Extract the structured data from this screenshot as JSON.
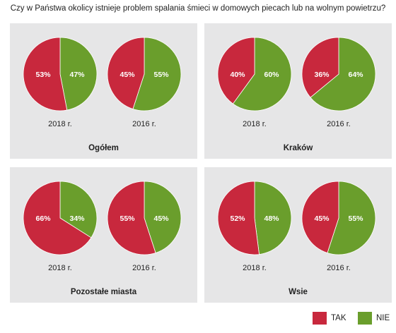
{
  "colors": {
    "tak": "#c8283d",
    "nie": "#6a9e2c"
  },
  "chart_data": {
    "type": "pie",
    "title": "Czy w Państwa okolicy istnieje problem spalania śmieci w domowych piecach lub na wolnym powietrzu?",
    "legend": {
      "placement": "bottom-right",
      "entries": [
        "TAK",
        "NIE"
      ]
    },
    "panels": [
      {
        "name": "Ogółem",
        "pies": [
          {
            "year_label": "2018 r.",
            "slices": [
              {
                "name": "TAK",
                "value": 53,
                "label": "53%"
              },
              {
                "name": "NIE",
                "value": 47,
                "label": "47%"
              }
            ]
          },
          {
            "year_label": "2016 r.",
            "slices": [
              {
                "name": "TAK",
                "value": 45,
                "label": "45%"
              },
              {
                "name": "NIE",
                "value": 55,
                "label": "55%"
              }
            ]
          }
        ]
      },
      {
        "name": "Kraków",
        "pies": [
          {
            "year_label": "2018 r.",
            "slices": [
              {
                "name": "TAK",
                "value": 40,
                "label": "40%"
              },
              {
                "name": "NIE",
                "value": 60,
                "label": "60%"
              }
            ]
          },
          {
            "year_label": "2016 r.",
            "slices": [
              {
                "name": "TAK",
                "value": 36,
                "label": "36%"
              },
              {
                "name": "NIE",
                "value": 64,
                "label": "64%"
              }
            ]
          }
        ]
      },
      {
        "name": "Pozostałe miasta",
        "pies": [
          {
            "year_label": "2018 r.",
            "slices": [
              {
                "name": "TAK",
                "value": 66,
                "label": "66%"
              },
              {
                "name": "NIE",
                "value": 34,
                "label": "34%"
              }
            ]
          },
          {
            "year_label": "2016 r.",
            "slices": [
              {
                "name": "TAK",
                "value": 55,
                "label": "55%"
              },
              {
                "name": "NIE",
                "value": 45,
                "label": "45%"
              }
            ]
          }
        ]
      },
      {
        "name": "Wsie",
        "pies": [
          {
            "year_label": "2018 r.",
            "slices": [
              {
                "name": "TAK",
                "value": 52,
                "label": "52%"
              },
              {
                "name": "NIE",
                "value": 48,
                "label": "48%"
              }
            ]
          },
          {
            "year_label": "2016 r.",
            "slices": [
              {
                "name": "TAK",
                "value": 45,
                "label": "45%"
              },
              {
                "name": "NIE",
                "value": 55,
                "label": "55%"
              }
            ]
          }
        ]
      }
    ]
  }
}
